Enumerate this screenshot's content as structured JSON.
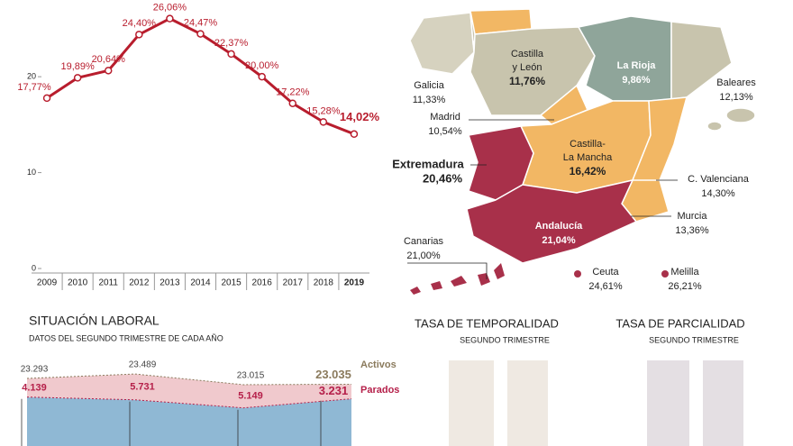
{
  "chart_data": [
    {
      "type": "line",
      "categories": [
        "2009",
        "2010",
        "2011",
        "2012",
        "2013",
        "2014",
        "2015",
        "2016",
        "2017",
        "2018",
        "2019"
      ],
      "values": [
        17.77,
        19.89,
        20.64,
        24.4,
        26.06,
        24.47,
        22.37,
        20.0,
        17.22,
        15.28,
        14.02
      ],
      "value_labels": [
        "17,77%",
        "19,89%",
        "20,64%",
        "24,40%",
        "26,06%",
        "24,47%",
        "22,37%",
        "20,00%",
        "17,22%",
        "15,28%",
        "14,02%"
      ],
      "color": "#b81d2d",
      "ylim": [
        0,
        28
      ],
      "yticks": [
        0,
        10,
        20
      ]
    },
    {
      "type": "area",
      "title": "SITUACIÓN LABORAL",
      "subtitle": "DATOS DEL SEGUNDO TRIMESTRE DE CADA AÑO",
      "categories": [
        null,
        null,
        null,
        null
      ],
      "series": [
        {
          "name": "Activos",
          "color": "#8a7a5c",
          "values": [
            23293,
            23489,
            23015,
            23035
          ],
          "value_labels": [
            "23.293",
            "23.489",
            "23.015",
            "23.035"
          ]
        },
        {
          "name": "Parados",
          "color": "#b5204a",
          "values": [
            4139,
            5731,
            5149,
            3231
          ],
          "value_labels": [
            "4.139",
            "5.731",
            "5.149",
            "3.231"
          ]
        }
      ]
    }
  ],
  "map": {
    "regions": [
      {
        "name": [
          "Galicia"
        ],
        "value": "11,33%"
      },
      {
        "name": [
          "Castilla",
          "y León"
        ],
        "value": "11,76%"
      },
      {
        "name": [
          "La Rioja"
        ],
        "value": "9,86%"
      },
      {
        "name": [
          "Baleares"
        ],
        "value": "12,13%"
      },
      {
        "name": [
          "Madrid"
        ],
        "value": "10,54%"
      },
      {
        "name": [
          "Castilla-",
          "La Mancha"
        ],
        "value": "16,42%"
      },
      {
        "name": [
          "Extremadura"
        ],
        "value": "20,46%"
      },
      {
        "name": [
          "C. Valenciana"
        ],
        "value": "14,30%"
      },
      {
        "name": [
          "Murcia"
        ],
        "value": "13,36%"
      },
      {
        "name": [
          "Andalucía"
        ],
        "value": "21,04%"
      },
      {
        "name": [
          "Canarias"
        ],
        "value": "21,00%"
      },
      {
        "name": [
          "Ceuta"
        ],
        "value": "24,61%"
      },
      {
        "name": [
          "Melilla"
        ],
        "value": "26,21%"
      }
    ]
  },
  "panels": [
    {
      "title": "TASA DE TEMPORALIDAD",
      "subtitle": "SEGUNDO TRIMESTRE"
    },
    {
      "title": "TASA DE PARCIALIDAD",
      "subtitle": "SEGUNDO TRIMESTRE"
    }
  ]
}
